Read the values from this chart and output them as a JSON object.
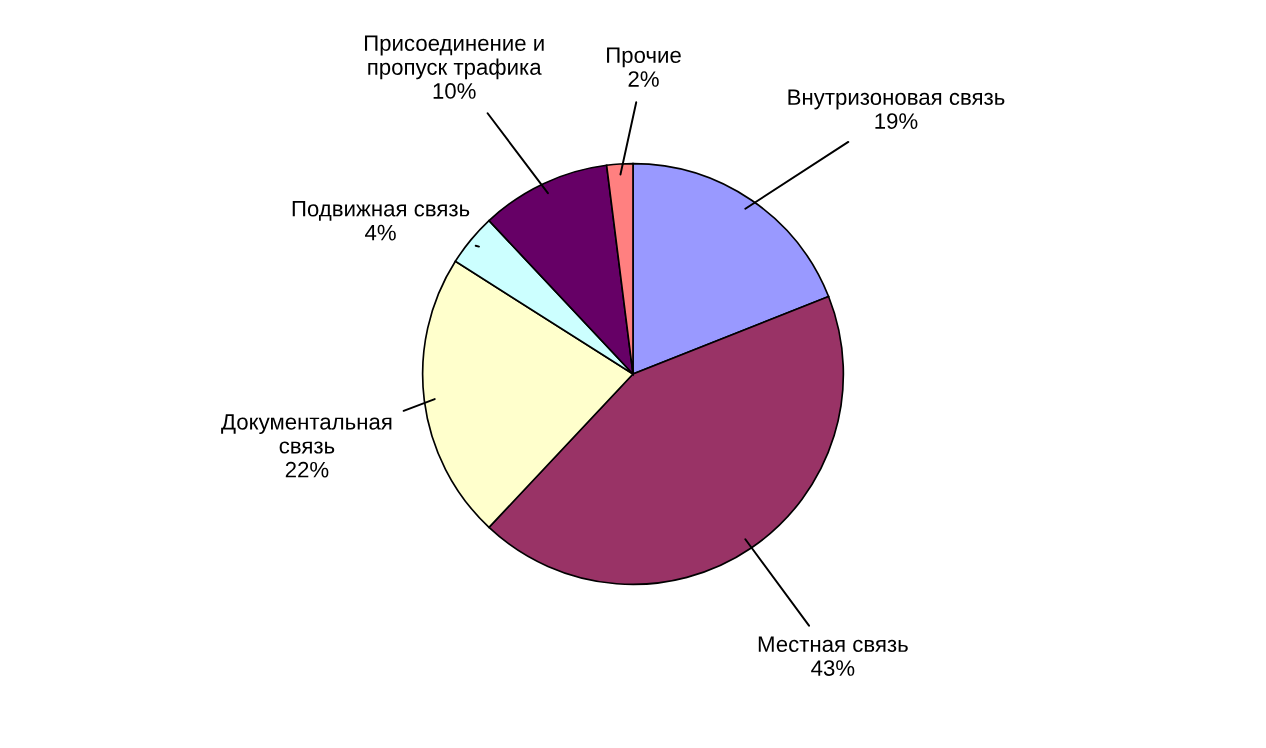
{
  "chart_data": {
    "type": "pie",
    "categories": [
      "Внутризоновая связь",
      "Местная связь",
      "Документальная\nсвязь",
      "Подвижная связь",
      "Присоединение и\nпропуск трафика",
      "Прочие"
    ],
    "values": [
      19,
      43,
      22,
      4,
      10,
      2
    ],
    "value_labels": [
      "19%",
      "43%",
      "22%",
      "4%",
      "10%",
      "2%"
    ],
    "colors": [
      "#9999ff",
      "#993366",
      "#ffffcc",
      "#ccffff",
      "#660066",
      "#ff8080"
    ],
    "legend": false
  }
}
